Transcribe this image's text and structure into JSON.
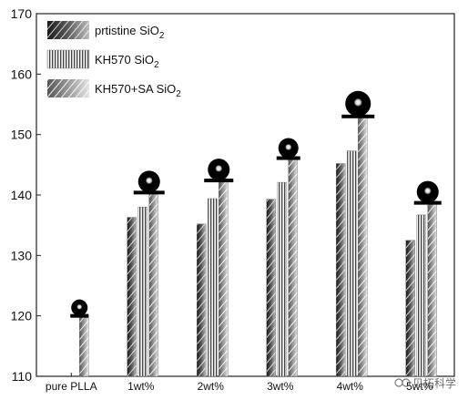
{
  "chart_data": {
    "type": "bar",
    "title": "",
    "xlabel": "",
    "ylabel": "",
    "ylim": [
      110,
      170
    ],
    "yticks": [
      110,
      120,
      130,
      140,
      150,
      160,
      170
    ],
    "categories": [
      "pure PLLA",
      "1wt%",
      "2wt%",
      "3wt%",
      "4wt%",
      "5wt%"
    ],
    "series": [
      {
        "name": "prtistine SiO",
        "subscript": "2",
        "pattern": "dark-diagonal",
        "values": [
          null,
          136.3,
          135.2,
          139.3,
          145.2,
          132.5
        ]
      },
      {
        "name": "KH570 SiO",
        "subscript": "2",
        "pattern": "vertical-stripes",
        "values": [
          null,
          138.0,
          139.4,
          142.1,
          147.3,
          136.7
        ]
      },
      {
        "name": "KH570+SA SiO",
        "subscript": "2",
        "pattern": "light-diagonal",
        "values": [
          120.3,
          140.7,
          142.7,
          146.4,
          153.3,
          139.0
        ]
      }
    ],
    "legend_position": "top-left",
    "grid": false
  },
  "watermark": "贝拓科学"
}
